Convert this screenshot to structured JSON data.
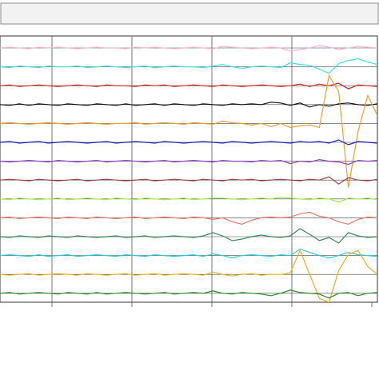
{
  "chart_data": {
    "type": "line",
    "stacked_traces": true,
    "series": [
      {
        "color": "#f2b8d4",
        "values": [
          0,
          1,
          0,
          -1,
          1,
          0,
          1,
          0,
          -1,
          0,
          1,
          0,
          0,
          -1,
          1,
          0,
          1,
          0,
          -1,
          0,
          1,
          0,
          -1,
          2,
          1,
          0,
          -1,
          0,
          1,
          0,
          -4,
          -2,
          0,
          3,
          1,
          -2,
          0,
          2,
          1,
          0
        ]
      },
      {
        "color": "#40e0e0",
        "values": [
          0,
          -1,
          1,
          0,
          -1,
          1,
          0,
          0,
          1,
          -1,
          0,
          1,
          0,
          -1,
          0,
          1,
          -1,
          0,
          1,
          0,
          0,
          -1,
          1,
          3,
          0,
          -2,
          0,
          1,
          0,
          -1,
          5,
          3,
          2,
          -3,
          -8,
          4,
          8,
          10,
          6,
          3
        ]
      },
      {
        "color": "#d42020",
        "values": [
          0,
          1,
          -1,
          0,
          1,
          0,
          -1,
          0,
          1,
          0,
          -1,
          1,
          0,
          0,
          -1,
          1,
          0,
          1,
          -1,
          0,
          1,
          0,
          -1,
          1,
          0,
          -1,
          0,
          1,
          0,
          -1,
          0,
          2,
          -1,
          2,
          0,
          3,
          -4,
          1,
          0,
          -1
        ]
      },
      {
        "color": "#111111",
        "values": [
          0,
          -1,
          1,
          -1,
          1,
          0,
          -1,
          1,
          0,
          -1,
          1,
          0,
          -1,
          1,
          -1,
          0,
          1,
          -1,
          1,
          0,
          -1,
          1,
          0,
          -1,
          1,
          0,
          1,
          0,
          3,
          2,
          -1,
          2,
          -3,
          0,
          -2,
          1,
          2,
          0,
          -1,
          1
        ]
      },
      {
        "color": "#f0a030",
        "values": [
          0,
          1,
          0,
          -1,
          0,
          1,
          0,
          -1,
          0,
          1,
          0,
          -1,
          0,
          0,
          1,
          -1,
          0,
          1,
          0,
          -1,
          1,
          0,
          -1,
          3,
          1,
          0,
          -2,
          0,
          -4,
          0,
          -5,
          -3,
          -2,
          -5,
          60,
          40,
          -80,
          -10,
          35,
          10
        ]
      },
      {
        "color": "#2020c0",
        "values": [
          0,
          1,
          -1,
          0,
          1,
          -1,
          0,
          1,
          0,
          -1,
          0,
          1,
          -1,
          0,
          1,
          0,
          -1,
          1,
          0,
          -1,
          0,
          1,
          0,
          -1,
          1,
          0,
          -1,
          0,
          1,
          0,
          -1,
          1,
          0,
          1,
          -1,
          3,
          -3,
          1,
          0,
          -1
        ]
      },
      {
        "color": "#9040c8",
        "values": [
          0,
          -1,
          0,
          1,
          0,
          -1,
          1,
          0,
          -1,
          0,
          1,
          -1,
          0,
          1,
          0,
          -1,
          0,
          1,
          -1,
          0,
          1,
          0,
          -1,
          1,
          0,
          0,
          -1,
          1,
          0,
          1,
          -3,
          0,
          -1,
          2,
          0,
          -1,
          -4,
          1,
          0,
          1
        ]
      },
      {
        "color": "#a04040",
        "values": [
          0,
          1,
          0,
          -1,
          1,
          0,
          -1,
          0,
          1,
          -1,
          0,
          1,
          0,
          -1,
          0,
          1,
          -1,
          0,
          1,
          0,
          -1,
          1,
          0,
          -1,
          1,
          0,
          1,
          -1,
          0,
          1,
          0,
          -1,
          1,
          0,
          4,
          -5,
          3,
          0,
          -1,
          1
        ]
      },
      {
        "color": "#a0f040",
        "values": [
          0,
          -1,
          1,
          0,
          -1,
          0,
          1,
          -1,
          0,
          1,
          0,
          -1,
          1,
          0,
          -1,
          1,
          0,
          -1,
          0,
          1,
          -1,
          0,
          1,
          1,
          0,
          -1,
          0,
          1,
          0,
          2,
          1,
          0,
          -1,
          1,
          0,
          -4,
          1,
          0,
          1,
          -1
        ]
      },
      {
        "color": "#e87a6a",
        "values": [
          0,
          1,
          -1,
          0,
          1,
          0,
          -1,
          1,
          0,
          -1,
          1,
          0,
          -1,
          0,
          1,
          -1,
          0,
          1,
          0,
          -1,
          1,
          0,
          -2,
          0,
          -5,
          -8,
          -3,
          0,
          1,
          0,
          1,
          5,
          7,
          2,
          0,
          -5,
          -8,
          -2,
          1,
          0
        ]
      },
      {
        "color": "#3a8a5a",
        "values": [
          0,
          -1,
          1,
          0,
          -1,
          1,
          0,
          -1,
          1,
          0,
          -1,
          0,
          1,
          -1,
          0,
          1,
          -1,
          0,
          1,
          0,
          -1,
          1,
          5,
          1,
          -5,
          -3,
          0,
          2,
          0,
          -1,
          1,
          10,
          3,
          -5,
          -1,
          -8,
          5,
          1,
          -1,
          0
        ]
      },
      {
        "color": "#30c8e0",
        "values": [
          0,
          1,
          0,
          -1,
          1,
          -1,
          0,
          1,
          -1,
          0,
          1,
          0,
          -1,
          1,
          0,
          -1,
          1,
          0,
          -1,
          0,
          1,
          -1,
          2,
          0,
          -3,
          0,
          1,
          0,
          -1,
          1,
          0,
          8,
          4,
          0,
          -3,
          0,
          4,
          1,
          0,
          -1
        ]
      },
      {
        "color": "#f0b020",
        "values": [
          0,
          -1,
          0,
          1,
          -1,
          0,
          1,
          0,
          -1,
          1,
          0,
          -1,
          0,
          1,
          -1,
          0,
          1,
          -1,
          0,
          1,
          0,
          -1,
          3,
          0,
          -2,
          0,
          1,
          -1,
          0,
          0,
          2,
          30,
          0,
          -30,
          -35,
          5,
          25,
          30,
          10,
          0
        ]
      },
      {
        "color": "#2a8a2a",
        "values": [
          0,
          1,
          -1,
          0,
          1,
          0,
          -1,
          1,
          0,
          -1,
          1,
          -1,
          0,
          1,
          0,
          -1,
          0,
          1,
          -1,
          0,
          1,
          0,
          3,
          0,
          -1,
          1,
          0,
          -1,
          -3,
          0,
          4,
          1,
          0,
          -1,
          -6,
          0,
          1,
          -3,
          0,
          1
        ]
      }
    ]
  }
}
